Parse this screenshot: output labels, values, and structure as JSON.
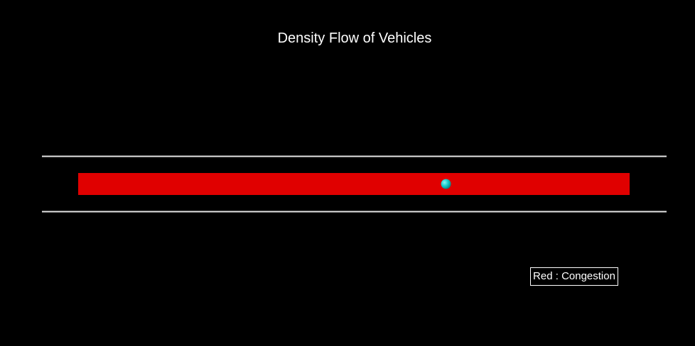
{
  "chart_data": {
    "type": "other",
    "title": "Density Flow of Vehicles",
    "xlabel": "",
    "ylabel": "",
    "grid": false,
    "road": {
      "x_range": [
        0,
        100
      ],
      "edge_color": "#e6e6e6"
    },
    "segments": [
      {
        "start": 0,
        "end": 100,
        "color": "#e00000",
        "state": "congestion"
      }
    ],
    "vehicles": [
      {
        "position": 66.7,
        "color": "#17cfcf"
      }
    ],
    "legend": {
      "placement": "bottom-right",
      "text": "Red : Congestion"
    }
  }
}
